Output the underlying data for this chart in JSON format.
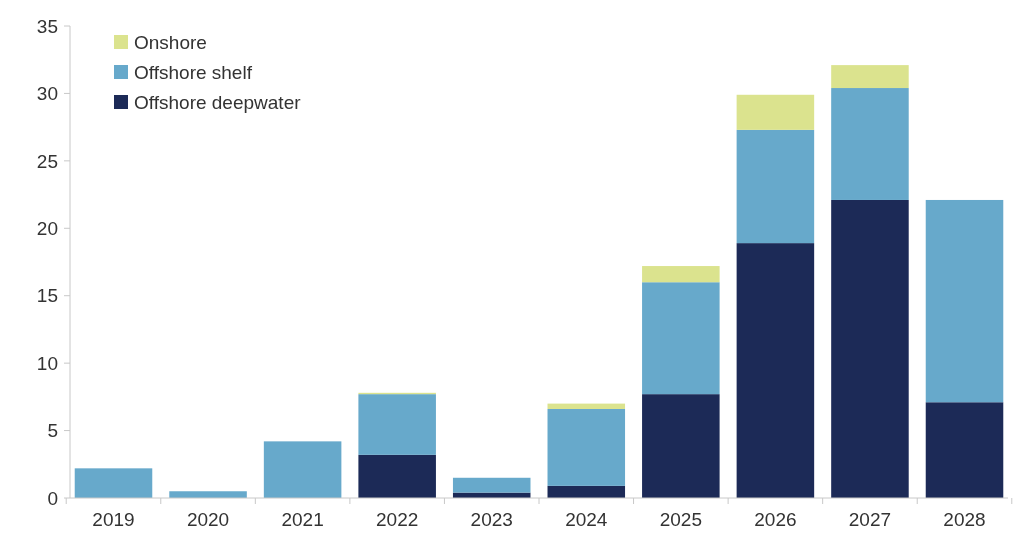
{
  "chart_data": {
    "type": "bar",
    "stacked": true,
    "categories": [
      "2019",
      "2020",
      "2021",
      "2022",
      "2023",
      "2024",
      "2025",
      "2026",
      "2027",
      "2028"
    ],
    "series": [
      {
        "name": "Offshore deepwater",
        "color": "#1c2a57",
        "values": [
          0,
          0,
          0,
          3.2,
          0.4,
          0.9,
          7.7,
          18.9,
          22.1,
          7.1
        ]
      },
      {
        "name": "Offshore shelf",
        "color": "#67a9cb",
        "values": [
          2.2,
          0.5,
          4.2,
          4.5,
          1.1,
          5.7,
          8.3,
          8.4,
          8.3,
          15.0
        ]
      },
      {
        "name": "Onshore",
        "color": "#dbe38e",
        "values": [
          0,
          0,
          0,
          0.1,
          0,
          0.4,
          1.2,
          2.6,
          1.7,
          0
        ]
      }
    ],
    "ylim": [
      0,
      35
    ],
    "yticks": [
      0,
      5,
      10,
      15,
      20,
      25,
      30,
      35
    ],
    "legend": "top left"
  }
}
